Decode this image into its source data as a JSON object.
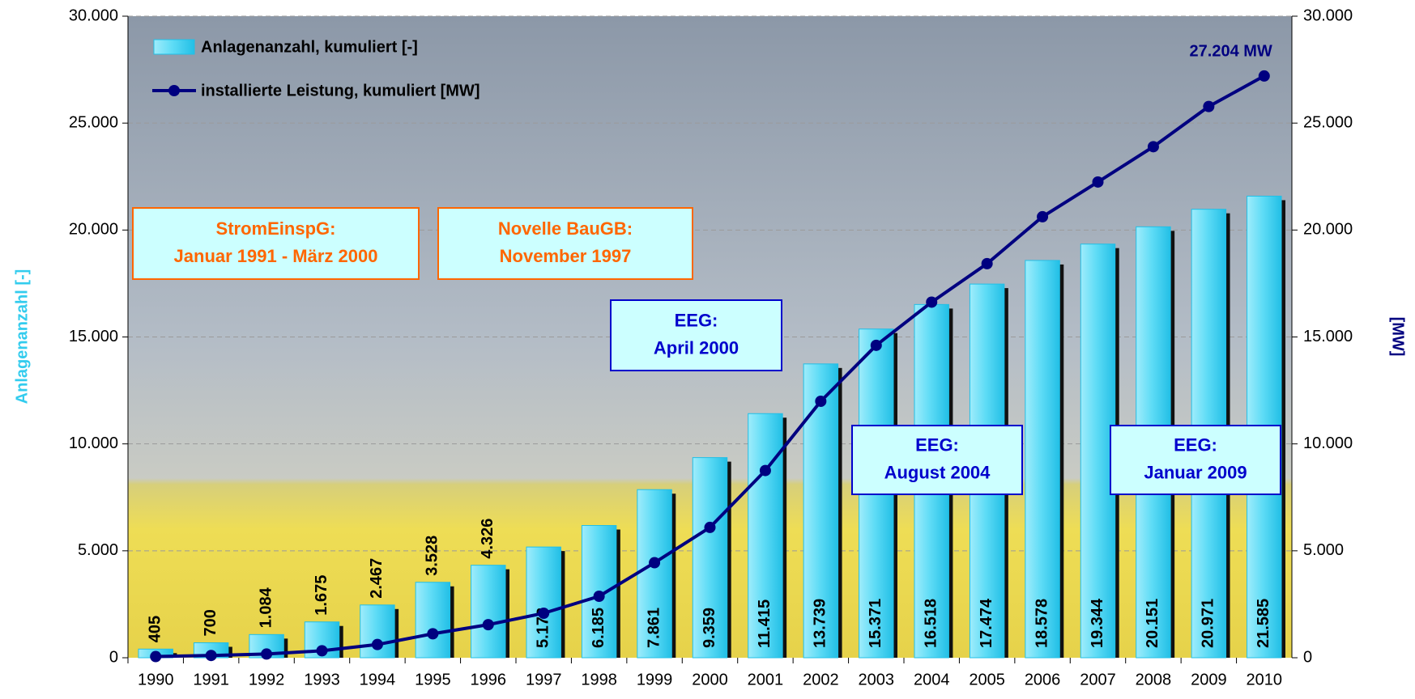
{
  "chart_data": {
    "type": "bar",
    "categories": [
      "1990",
      "1991",
      "1992",
      "1993",
      "1994",
      "1995",
      "1996",
      "1997",
      "1998",
      "1999",
      "2000",
      "2001",
      "2002",
      "2003",
      "2004",
      "2005",
      "2006",
      "2007",
      "2008",
      "2009",
      "2010"
    ],
    "series": [
      {
        "name": "Anlagenanzahl, kumuliert [-]",
        "color": "#33ccee",
        "type": "bar",
        "values": [
          405,
          700,
          1084,
          1675,
          2467,
          3528,
          4326,
          5178,
          6185,
          7861,
          9359,
          11415,
          13739,
          15371,
          16518,
          17474,
          18578,
          19344,
          20151,
          20971,
          21585
        ],
        "value_labels": [
          "405",
          "700",
          "1.084",
          "1.675",
          "2.467",
          "3.528",
          "4.326",
          "5.178",
          "6.185",
          "7.861",
          "9.359",
          "11.415",
          "13.739",
          "15.371",
          "16.518",
          "17.474",
          "18.578",
          "19.344",
          "20.151",
          "20.971",
          "21.585"
        ]
      },
      {
        "name": "installierte Leistung, kumuliert [MW]",
        "color": "#000080",
        "type": "line",
        "axis": "y2",
        "values": [
          55,
          106,
          174,
          326,
          618,
          1121,
          1546,
          2081,
          2875,
          4444,
          6095,
          8754,
          11994,
          14609,
          16629,
          18428,
          20622,
          22247,
          23897,
          25777,
          27204
        ]
      }
    ],
    "ylabel": "Anlagenanzahl [-]",
    "y2label": "[MW]",
    "ylim": [
      0,
      30000
    ],
    "yticks": [
      0,
      {
        "value": 5000,
        "label": "5.000"
      },
      {
        "value": 10000,
        "label": "10.000"
      },
      {
        "value": 15000,
        "label": "15.000"
      },
      {
        "value": 20000,
        "label": "20.000"
      },
      {
        "value": 25000,
        "label": "25.000"
      },
      {
        "value": 30000,
        "label": "30.000"
      }
    ],
    "y2lim": [
      0,
      30000
    ],
    "y2ticks": [
      0,
      {
        "value": 5000,
        "label": "5.000"
      },
      {
        "value": 10000,
        "label": "10.000"
      },
      {
        "value": 15000,
        "label": "15.000"
      },
      {
        "value": 20000,
        "label": "20.000"
      },
      {
        "value": 25000,
        "label": "25.000"
      },
      {
        "value": 30000,
        "label": "30.000"
      }
    ],
    "grid": true,
    "legend": "upper left",
    "end_label": "27.204 MW",
    "annotations": [
      {
        "lines": [
          "StromEinspG:",
          "Januar 1991 - März 2000"
        ],
        "color": "#ff6600"
      },
      {
        "lines": [
          "Novelle BauGB:",
          "November 1997"
        ],
        "color": "#ff6600"
      },
      {
        "lines": [
          "EEG:",
          "April 2000"
        ],
        "color": "#0000cc"
      },
      {
        "lines": [
          "EEG:",
          "August 2004"
        ],
        "color": "#0000cc"
      },
      {
        "lines": [
          "EEG:",
          "Januar 2009"
        ],
        "color": "#0000cc"
      }
    ]
  }
}
